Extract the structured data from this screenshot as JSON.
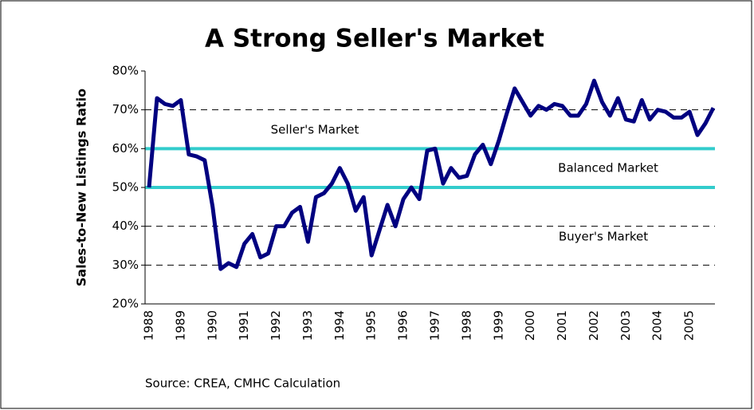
{
  "chart_data": {
    "type": "line",
    "title": "A Strong Seller's Market",
    "y_label": "Sales-to-New Listings Ratio",
    "source": "Source: CREA, CMHC Calculation",
    "annotations": [
      "Seller's Market",
      "Balanced Market",
      "Buyer's Market"
    ],
    "reference_lines": [
      {
        "value": 60,
        "color": "#33cccc"
      },
      {
        "value": 50,
        "color": "#33cccc"
      }
    ],
    "categories": [
      "1988",
      null,
      null,
      null,
      "1989",
      null,
      null,
      null,
      "1990",
      null,
      null,
      null,
      "1991",
      null,
      null,
      null,
      "1992",
      null,
      null,
      null,
      "1993",
      null,
      null,
      null,
      "1994",
      null,
      null,
      null,
      "1995",
      null,
      null,
      null,
      "1996",
      null,
      null,
      null,
      "1997",
      null,
      null,
      null,
      "1998",
      null,
      null,
      null,
      "1999",
      null,
      null,
      null,
      "2000",
      null,
      null,
      null,
      "2001",
      null,
      null,
      null,
      "2002",
      null,
      null,
      null,
      "2003",
      null,
      null,
      null,
      "2004",
      null,
      null,
      null,
      "2005",
      null,
      null,
      null
    ],
    "series": [
      {
        "color": "#000080",
        "values": [
          50,
          73,
          71.5,
          71,
          72.5,
          58.5,
          58,
          57,
          45,
          29,
          30.5,
          29.5,
          35.5,
          38,
          32,
          33,
          40,
          40,
          43.5,
          45,
          36,
          47.5,
          48.5,
          51,
          55,
          51,
          44,
          47.5,
          32.5,
          39,
          45.5,
          40,
          47,
          50,
          47,
          59.5,
          60,
          51,
          55,
          52.5,
          53,
          58.5,
          61,
          56,
          62,
          69,
          75.5,
          72,
          68.5,
          71,
          70,
          71.5,
          71,
          68.5,
          68.5,
          71.5,
          77.5,
          72,
          68.5,
          73,
          67.5,
          67,
          72.5,
          67.5,
          70,
          69.5,
          68,
          68,
          69.5,
          63.5,
          66.5,
          70.5
        ]
      }
    ],
    "ylim": [
      20,
      80
    ],
    "yticks": [
      {
        "value": 20,
        "label": "20%"
      },
      {
        "value": 30,
        "label": "30%"
      },
      {
        "value": 40,
        "label": "40%"
      },
      {
        "value": 50,
        "label": "50%"
      },
      {
        "value": 60,
        "label": "60%"
      },
      {
        "value": 70,
        "label": "70%"
      },
      {
        "value": 80,
        "label": "80%"
      }
    ],
    "grid": true
  }
}
